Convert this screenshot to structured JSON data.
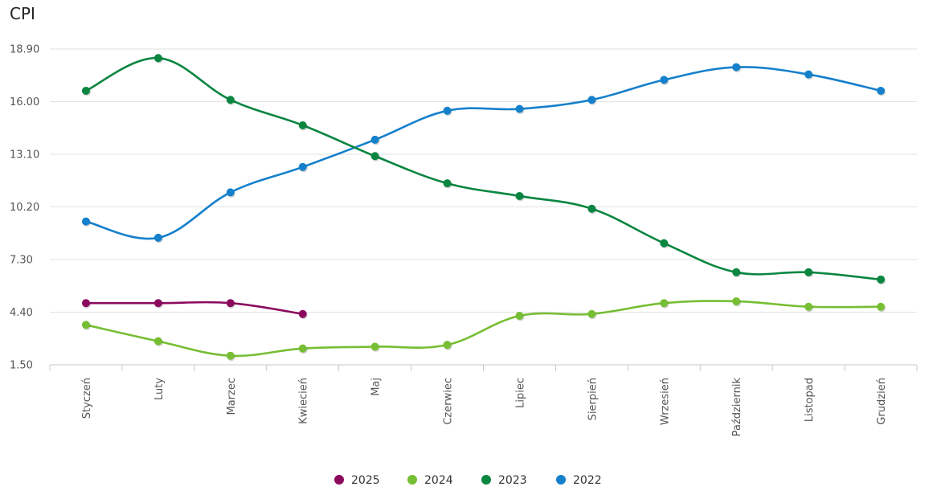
{
  "chart_data": {
    "type": "line",
    "title": "CPI",
    "categories": [
      "Styczeń",
      "Luty",
      "Marzec",
      "Kwiecień",
      "Maj",
      "Czerwiec",
      "Lipiec",
      "Sierpień",
      "Wrzesień",
      "Październik",
      "Listopad",
      "Grudzień"
    ],
    "y_ticks": [
      "1.50",
      "4.40",
      "7.30",
      "10.20",
      "13.10",
      "16.00",
      "18.90"
    ],
    "ylim": [
      1.5,
      18.9
    ],
    "grid": true,
    "legend_position": "bottom",
    "series": [
      {
        "name": "2025",
        "color": "#8b0a5e",
        "values": [
          4.9,
          4.9,
          4.9,
          4.3,
          null,
          null,
          null,
          null,
          null,
          null,
          null,
          null
        ]
      },
      {
        "name": "2024",
        "color": "#76be33",
        "values": [
          3.7,
          2.8,
          2.0,
          2.4,
          2.5,
          2.6,
          4.2,
          4.3,
          4.9,
          5.0,
          4.7,
          4.7
        ]
      },
      {
        "name": "2023",
        "color": "#0a8641",
        "values": [
          16.6,
          18.4,
          16.1,
          14.7,
          13.0,
          11.5,
          10.8,
          10.1,
          8.2,
          6.6,
          6.6,
          6.2
        ]
      },
      {
        "name": "2022",
        "color": "#1580cc",
        "values": [
          9.4,
          8.5,
          11.0,
          12.4,
          13.9,
          15.5,
          15.6,
          16.1,
          17.2,
          17.9,
          17.5,
          16.6
        ]
      }
    ]
  }
}
